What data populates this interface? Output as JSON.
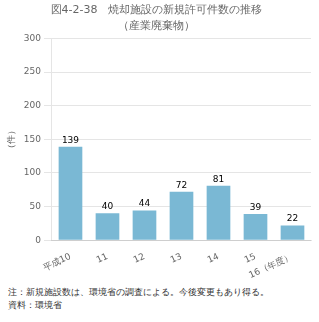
{
  "chart_data": {
    "type": "bar",
    "title": "図4-2-38　焼却施設の新規許可件数の推移",
    "subtitle": "（産業廃棄物）",
    "ylabel": "（件）",
    "categories": [
      "平成10",
      "11",
      "12",
      "13",
      "14",
      "15",
      "16（年度）"
    ],
    "values": [
      139,
      40,
      44,
      72,
      81,
      39,
      22
    ],
    "color": "#7ab8d4",
    "ylim": [
      0,
      300
    ],
    "yticks": [
      0,
      50,
      100,
      150,
      200,
      250,
      300
    ],
    "grid": true,
    "data_labels": true,
    "annotations": [
      "注：新規施設数は、環境省の調査による。今後変更もあり得る。",
      "資料：環境省"
    ]
  }
}
